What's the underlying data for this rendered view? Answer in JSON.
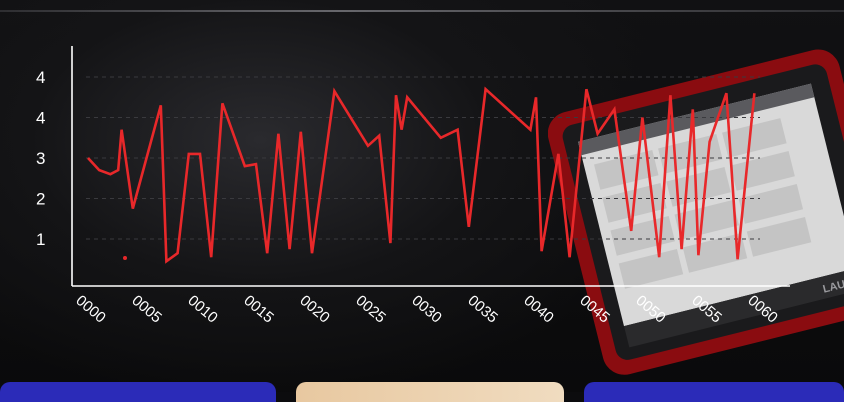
{
  "chart_data": {
    "type": "line",
    "title": "",
    "xlabel": "",
    "ylabel": "",
    "y_tick_labels": [
      "1",
      "2",
      "3",
      "4",
      "4"
    ],
    "x_tick_labels": [
      "0000",
      "0005",
      "0010",
      "0015",
      "0020",
      "0025",
      "0030",
      "0035",
      "0040",
      "0045",
      "0050",
      "0055",
      "0060"
    ],
    "grid": "horizontal dashed",
    "line_color": "#e8282a",
    "series": [
      {
        "x": [
          0,
          1,
          2,
          2.7,
          3,
          4,
          6.5,
          7,
          8,
          9,
          10,
          11,
          12,
          14,
          15,
          16,
          17,
          18,
          19,
          20,
          22,
          25,
          26,
          27,
          27.5,
          28,
          28.5,
          31.5,
          33,
          34,
          35.5,
          39.5,
          40,
          40.5,
          42,
          43,
          44.5,
          45.5,
          47,
          48.5,
          49.5,
          51,
          52,
          53,
          54,
          54.5,
          55.5,
          57,
          58,
          59.5
        ],
        "y": [
          3.0,
          2.7,
          2.6,
          2.7,
          3.7,
          1.75,
          4.3,
          0.45,
          0.65,
          3.1,
          3.1,
          0.55,
          4.35,
          2.8,
          2.85,
          0.65,
          3.6,
          0.75,
          3.65,
          0.65,
          4.65,
          3.3,
          3.55,
          0.9,
          4.55,
          3.7,
          4.5,
          3.5,
          3.7,
          1.3,
          4.7,
          3.7,
          4.5,
          0.7,
          3.1,
          0.55,
          4.7,
          3.6,
          4.2,
          1.2,
          4.0,
          0.55,
          4.55,
          0.75,
          4.2,
          0.6,
          3.4,
          4.6,
          0.5,
          4.6
        ]
      }
    ]
  }
}
